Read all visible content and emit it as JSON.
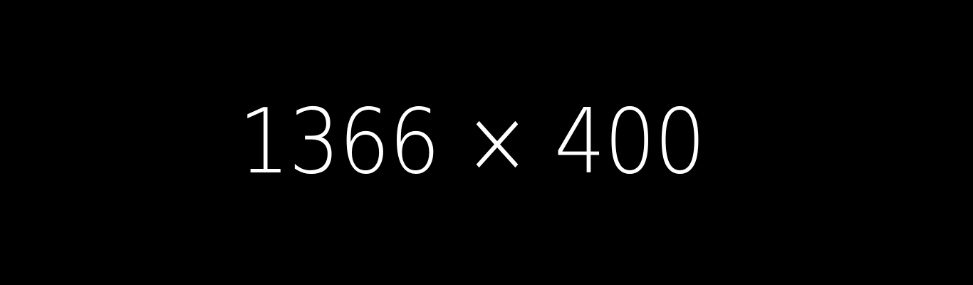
{
  "placeholder": {
    "text": "1366 × 400",
    "background_color": "#000000",
    "text_color": "#ffffff"
  }
}
